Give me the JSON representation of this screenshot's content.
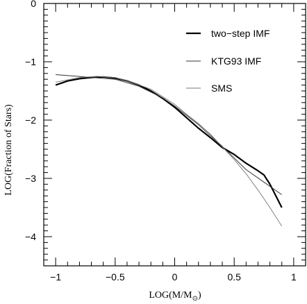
{
  "chart_data": {
    "type": "line",
    "title": "",
    "xlabel": "LOG(M/M",
    "xlabel_sub": "⊙",
    "xlabel_close": ")",
    "ylabel": "LOG(Fraction of Stars)",
    "xlim": [
      -1.1,
      1.1
    ],
    "ylim": [
      -4.5,
      0
    ],
    "x_ticks": [
      -1,
      -0.5,
      0,
      0.5,
      1
    ],
    "x_tick_labels": [
      "−1",
      "−0.5",
      "0",
      "0.5",
      "1"
    ],
    "y_ticks": [
      0,
      -1,
      -2,
      -3,
      -4
    ],
    "y_tick_labels": [
      "0",
      "−1",
      "−2",
      "−3",
      "−4"
    ],
    "grid": false,
    "legend_position": "top-right",
    "series": [
      {
        "name": "two−step IMF",
        "style": "thick",
        "x": [
          -1.0,
          -0.9,
          -0.8,
          -0.7,
          -0.6,
          -0.5,
          -0.4,
          -0.3,
          -0.2,
          -0.1,
          0.0,
          0.1,
          0.2,
          0.3,
          0.4,
          0.5,
          0.6,
          0.7,
          0.75,
          0.8,
          0.85,
          0.9
        ],
        "values": [
          -1.4,
          -1.33,
          -1.29,
          -1.27,
          -1.26,
          -1.28,
          -1.33,
          -1.4,
          -1.5,
          -1.63,
          -1.78,
          -1.96,
          -2.14,
          -2.3,
          -2.47,
          -2.59,
          -2.74,
          -2.87,
          -2.94,
          -3.1,
          -3.3,
          -3.5
        ]
      },
      {
        "name": "KTG93 IMF",
        "style": "thin",
        "x": [
          -1.0,
          -0.5,
          -0.3,
          -0.1,
          0.0,
          0.2,
          0.4,
          0.6,
          0.9
        ],
        "values": [
          -1.22,
          -1.3,
          -1.42,
          -1.62,
          -1.76,
          -2.08,
          -2.45,
          -2.85,
          -3.28
        ]
      },
      {
        "name": "SMS",
        "style": "faint",
        "x": [
          -1.0,
          -0.8,
          -0.65,
          -0.5,
          -0.35,
          -0.2,
          -0.1,
          0.0,
          0.1,
          0.2,
          0.3,
          0.4,
          0.5,
          0.6,
          0.7,
          0.8,
          0.9
        ],
        "values": [
          -1.35,
          -1.27,
          -1.25,
          -1.27,
          -1.36,
          -1.47,
          -1.6,
          -1.73,
          -1.9,
          -2.06,
          -2.24,
          -2.46,
          -2.68,
          -2.92,
          -3.2,
          -3.5,
          -3.82
        ]
      }
    ],
    "colors": {
      "two-step": "#000000",
      "ktg93": "#333333",
      "sms": "#777777"
    }
  }
}
